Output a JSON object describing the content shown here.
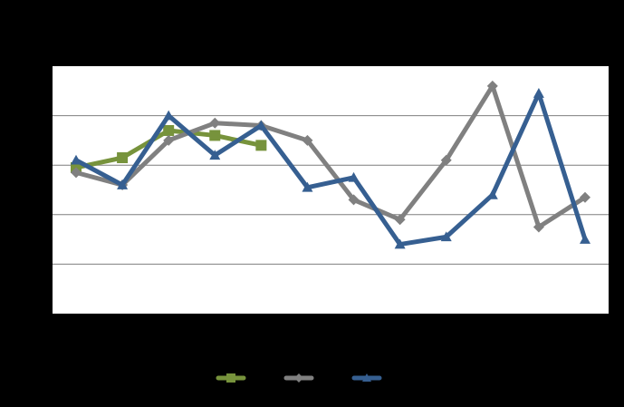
{
  "colors": {
    "background": "#000000",
    "plot_area": "#ffffff",
    "gridline": "#7f7f7f",
    "series_green": "#77933c",
    "series_gray": "#808080",
    "series_blue": "#365f91"
  },
  "chart_data": {
    "type": "line",
    "title": "",
    "xlabel": "",
    "ylabel": "",
    "x": [
      1,
      2,
      3,
      4,
      5,
      6,
      7,
      8,
      9,
      10,
      11,
      12
    ],
    "ylim": [
      0,
      5
    ],
    "grid": true,
    "legend": "bottom",
    "series": [
      {
        "marker": "square",
        "color": "#77933c",
        "values": [
          2.95,
          3.15,
          3.7,
          3.6,
          3.4,
          null,
          null,
          null,
          null,
          null,
          null,
          null
        ]
      },
      {
        "marker": "diamond",
        "color": "#808080",
        "values": [
          2.85,
          2.6,
          3.5,
          3.85,
          3.8,
          3.5,
          2.3,
          1.9,
          3.1,
          4.6,
          1.75,
          2.35
        ]
      },
      {
        "marker": "triangle",
        "color": "#365f91",
        "values": [
          3.1,
          2.6,
          4.0,
          3.2,
          3.8,
          2.55,
          2.75,
          1.4,
          1.55,
          2.4,
          4.45,
          1.5
        ]
      }
    ]
  }
}
